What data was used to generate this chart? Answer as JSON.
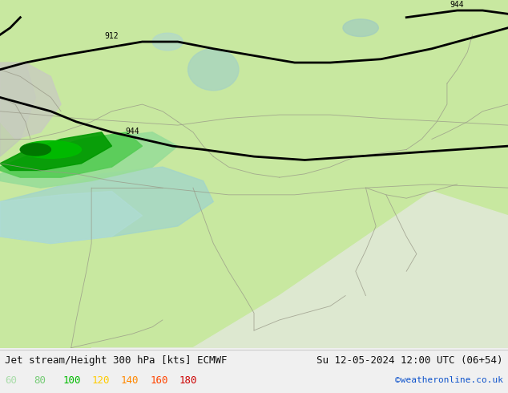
{
  "title_left": "Jet stream/Height 300 hPa [kts] ECMWF",
  "title_right": "Su 12-05-2024 12:00 UTC (06+54)",
  "credit": "©weatheronline.co.uk",
  "legend_values": [
    "60",
    "80",
    "100",
    "120",
    "140",
    "160",
    "180"
  ],
  "legend_colors": [
    "#aaddaa",
    "#77cc77",
    "#00bb00",
    "#ffcc00",
    "#ff8800",
    "#ff4400",
    "#cc0000"
  ],
  "bg_color": "#c8e8a0",
  "figsize": [
    6.34,
    4.9
  ],
  "dpi": 100,
  "bottom_bar_color": "#f0f0f0",
  "bottom_text_color": "#111111",
  "credit_color": "#1155cc",
  "label_fontsize": 9,
  "credit_fontsize": 8
}
